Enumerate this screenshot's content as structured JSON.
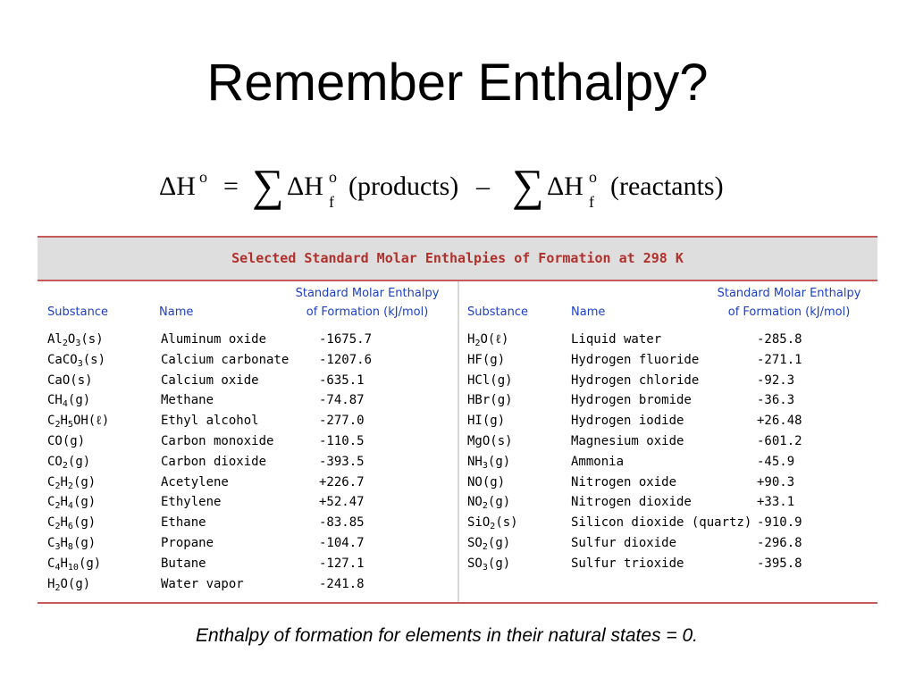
{
  "slide": {
    "title": "Remember Enthalpy?",
    "caption": "Enthalpy of formation for elements in their natural states = 0."
  },
  "formula": {
    "lhs": "ΔH",
    "degree": "o",
    "equals": "=",
    "sigma": "∑",
    "term": "ΔH",
    "sub": "f",
    "products": "(products)",
    "minus": "–",
    "reactants": "(reactants)"
  },
  "table": {
    "title": "Selected Standard Molar Enthalpies of Formation at 298 K",
    "headers": {
      "substance": "Substance",
      "name": "Name",
      "value_line1": "Standard Molar Enthalpy",
      "value_line2": "of Formation (kJ/mol)"
    },
    "left_rows": [
      {
        "substance": "Al<sub>2</sub>O<sub>3</sub>(s)",
        "name": "Aluminum oxide",
        "value": "-1675.7"
      },
      {
        "substance": "CaCO<sub>3</sub>(s)",
        "name": "Calcium carbonate",
        "value": "-1207.6"
      },
      {
        "substance": "CaO(s)",
        "name": "Calcium oxide",
        "value": "-635.1"
      },
      {
        "substance": "CH<sub>4</sub>(g)",
        "name": "Methane",
        "value": "-74.87"
      },
      {
        "substance": "C<sub>2</sub>H<sub>5</sub>OH(ℓ)",
        "name": "Ethyl alcohol",
        "value": "-277.0"
      },
      {
        "substance": "CO(g)",
        "name": "Carbon monoxide",
        "value": "-110.5"
      },
      {
        "substance": "CO<sub>2</sub>(g)",
        "name": "Carbon dioxide",
        "value": "-393.5"
      },
      {
        "substance": "C<sub>2</sub>H<sub>2</sub>(g)",
        "name": "Acetylene",
        "value": "+226.7"
      },
      {
        "substance": "C<sub>2</sub>H<sub>4</sub>(g)",
        "name": "Ethylene",
        "value": "+52.47"
      },
      {
        "substance": "C<sub>2</sub>H<sub>6</sub>(g)",
        "name": "Ethane",
        "value": "-83.85"
      },
      {
        "substance": "C<sub>3</sub>H<sub>8</sub>(g)",
        "name": "Propane",
        "value": "-104.7"
      },
      {
        "substance": "C<sub>4</sub>H<sub>10</sub>(g)",
        "name": "Butane",
        "value": "-127.1"
      },
      {
        "substance": "H<sub>2</sub>O(g)",
        "name": "Water vapor",
        "value": "-241.8"
      }
    ],
    "right_rows": [
      {
        "substance": "H<sub>2</sub>O(ℓ)",
        "name": "Liquid water",
        "value": "-285.8"
      },
      {
        "substance": "HF(g)",
        "name": "Hydrogen fluoride",
        "value": "-271.1"
      },
      {
        "substance": "HCl(g)",
        "name": "Hydrogen chloride",
        "value": "-92.3"
      },
      {
        "substance": "HBr(g)",
        "name": "Hydrogen bromide",
        "value": "-36.3"
      },
      {
        "substance": "HI(g)",
        "name": "Hydrogen iodide",
        "value": "+26.48"
      },
      {
        "substance": "MgO(s)",
        "name": "Magnesium oxide",
        "value": "-601.2"
      },
      {
        "substance": "NH<sub>3</sub>(g)",
        "name": "Ammonia",
        "value": "-45.9"
      },
      {
        "substance": "NO(g)",
        "name": "Nitrogen oxide",
        "value": "+90.3"
      },
      {
        "substance": "NO<sub>2</sub>(g)",
        "name": "Nitrogen dioxide",
        "value": "+33.1"
      },
      {
        "substance": "SiO<sub>2</sub>(s)",
        "name": "Silicon dioxide (quartz)",
        "value": "-910.9"
      },
      {
        "substance": "SO<sub>2</sub>(g)",
        "name": "Sulfur dioxide",
        "value": "-296.8"
      },
      {
        "substance": "SO<sub>3</sub>(g)",
        "name": "Sulfur trioxide",
        "value": "-395.8"
      }
    ]
  }
}
